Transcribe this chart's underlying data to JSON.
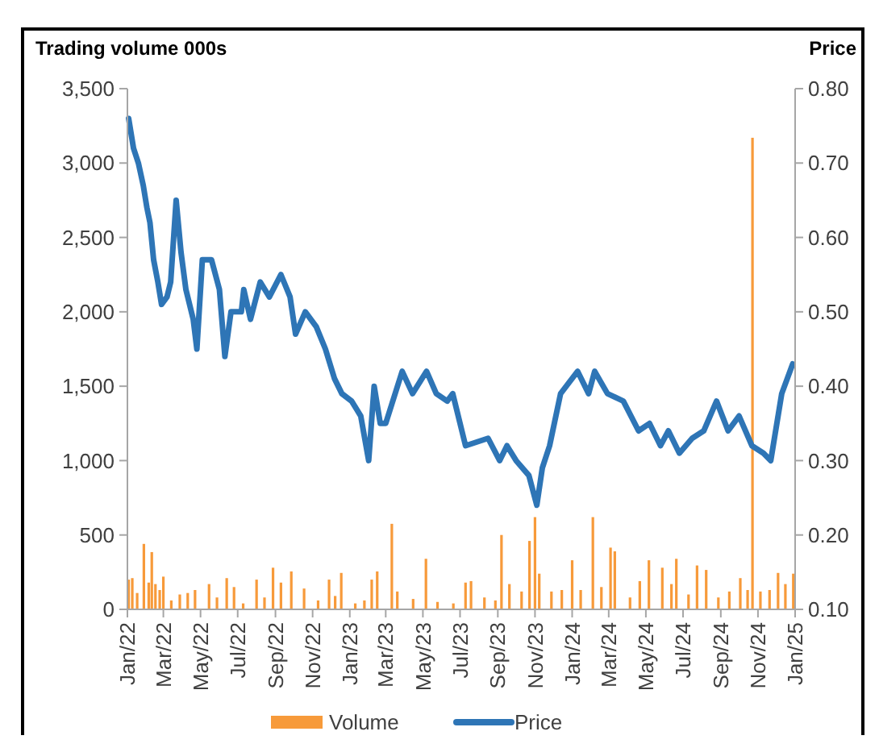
{
  "chart_data": {
    "type": "bar",
    "ylabel": "Trading volume 000s",
    "y2label": "Price",
    "xlim": [
      "2022-01",
      "2025-01"
    ],
    "xticks": [
      {
        "value": "2022-01",
        "label": "Jan/22"
      },
      {
        "value": "2022-03",
        "label": "Mar/22"
      },
      {
        "value": "2022-05",
        "label": "May/22"
      },
      {
        "value": "2022-07",
        "label": "Jul/22"
      },
      {
        "value": "2022-09",
        "label": "Sep/22"
      },
      {
        "value": "2022-11",
        "label": "Nov/22"
      },
      {
        "value": "2023-01",
        "label": "Jan/23"
      },
      {
        "value": "2023-03",
        "label": "Mar/23"
      },
      {
        "value": "2023-05",
        "label": "May/23"
      },
      {
        "value": "2023-07",
        "label": "Jul/23"
      },
      {
        "value": "2023-09",
        "label": "Sep/23"
      },
      {
        "value": "2023-11",
        "label": "Nov/23"
      },
      {
        "value": "2024-01",
        "label": "Jan/24"
      },
      {
        "value": "2024-03",
        "label": "Mar/24"
      },
      {
        "value": "2024-05",
        "label": "May/24"
      },
      {
        "value": "2024-07",
        "label": "Jul/24"
      },
      {
        "value": "2024-09",
        "label": "Sep/24"
      },
      {
        "value": "2024-11",
        "label": "Nov/24"
      },
      {
        "value": "2025-01",
        "label": "Jan/25"
      }
    ],
    "ylim": [
      0,
      3500
    ],
    "yticks": [
      {
        "value": 0,
        "label": "0"
      },
      {
        "value": 500,
        "label": "500"
      },
      {
        "value": 1000,
        "label": "1,000"
      },
      {
        "value": 1500,
        "label": "1,500"
      },
      {
        "value": 2000,
        "label": "2,000"
      },
      {
        "value": 2500,
        "label": "2,500"
      },
      {
        "value": 3000,
        "label": "3,000"
      },
      {
        "value": 3500,
        "label": "3,500"
      }
    ],
    "y2lim": [
      0.1,
      0.8
    ],
    "y2ticks": [
      {
        "value": 0.1,
        "label": "0.10"
      },
      {
        "value": 0.2,
        "label": "0.20"
      },
      {
        "value": 0.3,
        "label": "0.30"
      },
      {
        "value": 0.4,
        "label": "0.40"
      },
      {
        "value": 0.5,
        "label": "0.50"
      },
      {
        "value": 0.6,
        "label": "0.60"
      },
      {
        "value": 0.7,
        "label": "0.70"
      },
      {
        "value": 0.8,
        "label": "0.80"
      }
    ],
    "legend": "bottom",
    "grid": false,
    "series": [
      {
        "name": "Volume",
        "color": "#f79a3a",
        "x": [
          "2022-01-03",
          "2022-01-09",
          "2022-01-17",
          "2022-01-28",
          "2022-02-05",
          "2022-02-10",
          "2022-02-16",
          "2022-02-23",
          "2022-03-01",
          "2022-03-14",
          "2022-03-28",
          "2022-04-10",
          "2022-04-22",
          "2022-05-15",
          "2022-05-28",
          "2022-06-13",
          "2022-06-25",
          "2022-07-10",
          "2022-08-01",
          "2022-08-14",
          "2022-08-28",
          "2022-09-10",
          "2022-09-27",
          "2022-10-18",
          "2022-11-10",
          "2022-11-28",
          "2022-12-08",
          "2022-12-18",
          "2023-01-10",
          "2023-01-25",
          "2023-02-06",
          "2023-02-15",
          "2023-03-11",
          "2023-03-20",
          "2023-04-15",
          "2023-05-06",
          "2023-05-25",
          "2023-06-20",
          "2023-07-10",
          "2023-07-19",
          "2023-08-10",
          "2023-08-28",
          "2023-09-07",
          "2023-09-20",
          "2023-10-10",
          "2023-10-23",
          "2023-11-01",
          "2023-11-08",
          "2023-11-28",
          "2023-12-15",
          "2024-01-01",
          "2024-01-15",
          "2024-02-04",
          "2024-02-18",
          "2024-03-04",
          "2024-03-11",
          "2024-04-05",
          "2024-04-21",
          "2024-05-06",
          "2024-05-28",
          "2024-06-12",
          "2024-06-20",
          "2024-07-10",
          "2024-07-24",
          "2024-08-08",
          "2024-08-28",
          "2024-09-15",
          "2024-10-03",
          "2024-10-15",
          "2024-10-23",
          "2024-11-05",
          "2024-11-20",
          "2024-12-04",
          "2024-12-16",
          "2024-12-29"
        ],
        "values": [
          200,
          210,
          110,
          440,
          180,
          385,
          170,
          130,
          220,
          60,
          100,
          110,
          130,
          170,
          80,
          210,
          150,
          40,
          200,
          80,
          280,
          180,
          255,
          140,
          60,
          200,
          90,
          245,
          40,
          60,
          200,
          255,
          575,
          120,
          70,
          340,
          50,
          40,
          180,
          190,
          80,
          60,
          500,
          170,
          120,
          460,
          620,
          240,
          120,
          130,
          330,
          130,
          620,
          150,
          415,
          390,
          80,
          190,
          330,
          280,
          170,
          340,
          100,
          295,
          265,
          80,
          120,
          210,
          130,
          3170,
          120,
          130,
          245,
          170,
          240
        ]
      },
      {
        "name": "Price",
        "type": "line",
        "axis": "y2",
        "color": "#2e75b6",
        "x": [
          "2022-01-03",
          "2022-01-11",
          "2022-01-19",
          "2022-01-27",
          "2022-02-02",
          "2022-02-07",
          "2022-02-13",
          "2022-02-20",
          "2022-02-26",
          "2022-03-07",
          "2022-03-13",
          "2022-03-22",
          "2022-03-30",
          "2022-04-07",
          "2022-04-19",
          "2022-04-25",
          "2022-05-04",
          "2022-05-19",
          "2022-06-01",
          "2022-06-10",
          "2022-06-20",
          "2022-07-07",
          "2022-07-11",
          "2022-07-22",
          "2022-08-07",
          "2022-08-22",
          "2022-09-10",
          "2022-09-25",
          "2022-10-04",
          "2022-10-20",
          "2022-11-07",
          "2022-11-22",
          "2022-12-07",
          "2022-12-19",
          "2023-01-04",
          "2023-01-19",
          "2023-02-01",
          "2023-02-10",
          "2023-02-20",
          "2023-03-01",
          "2023-03-28",
          "2023-04-14",
          "2023-05-07",
          "2023-05-23",
          "2023-06-10",
          "2023-06-19",
          "2023-07-10",
          "2023-08-16",
          "2023-09-04",
          "2023-09-16",
          "2023-10-01",
          "2023-10-22",
          "2023-11-04",
          "2023-11-13",
          "2023-11-25",
          "2023-12-13",
          "2024-01-10",
          "2024-01-28",
          "2024-02-07",
          "2024-02-28",
          "2024-03-25",
          "2024-04-19",
          "2024-05-07",
          "2024-05-25",
          "2024-06-07",
          "2024-06-25",
          "2024-07-16",
          "2024-08-04",
          "2024-08-25",
          "2024-09-13",
          "2024-10-01",
          "2024-10-22",
          "2024-11-10",
          "2024-11-22",
          "2024-12-10",
          "2024-12-28"
        ],
        "values": [
          0.76,
          0.72,
          0.7,
          0.67,
          0.64,
          0.62,
          0.57,
          0.54,
          0.51,
          0.52,
          0.54,
          0.65,
          0.58,
          0.53,
          0.49,
          0.45,
          0.57,
          0.57,
          0.53,
          0.44,
          0.5,
          0.5,
          0.53,
          0.49,
          0.54,
          0.52,
          0.55,
          0.52,
          0.47,
          0.5,
          0.48,
          0.45,
          0.41,
          0.39,
          0.38,
          0.36,
          0.3,
          0.4,
          0.35,
          0.35,
          0.42,
          0.39,
          0.42,
          0.39,
          0.38,
          0.39,
          0.32,
          0.33,
          0.3,
          0.32,
          0.3,
          0.28,
          0.24,
          0.29,
          0.32,
          0.39,
          0.42,
          0.39,
          0.42,
          0.39,
          0.38,
          0.34,
          0.35,
          0.32,
          0.34,
          0.31,
          0.33,
          0.34,
          0.38,
          0.34,
          0.36,
          0.32,
          0.31,
          0.3,
          0.39,
          0.43
        ]
      }
    ]
  }
}
